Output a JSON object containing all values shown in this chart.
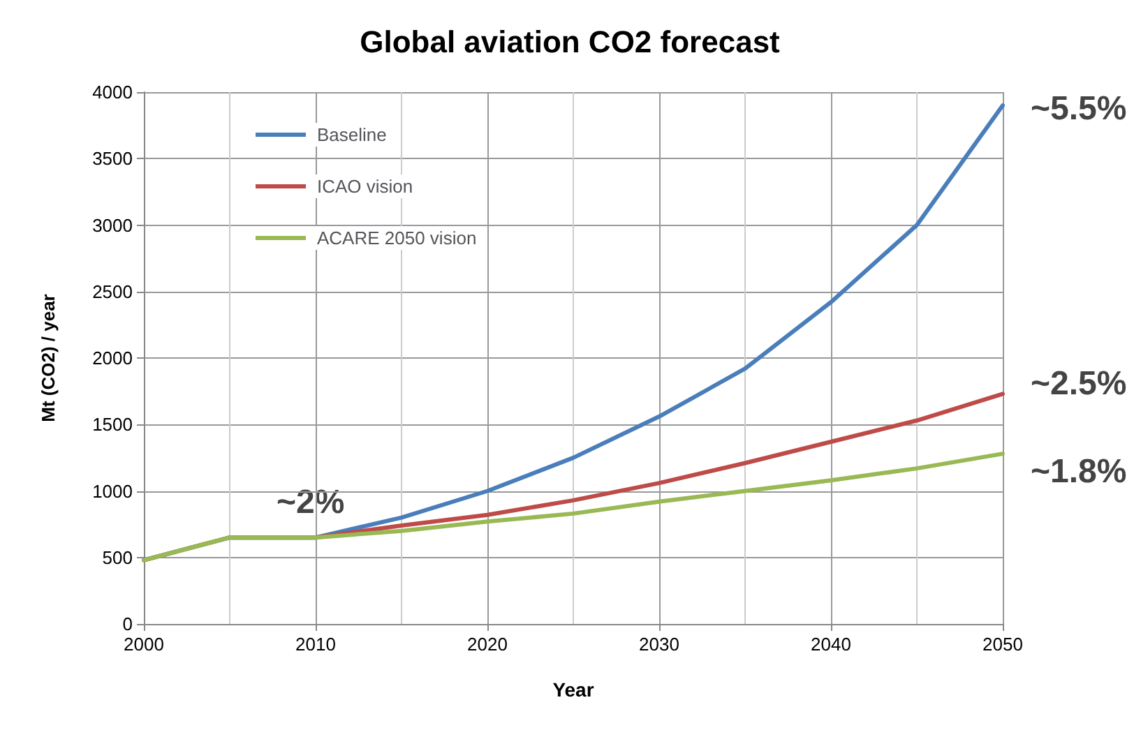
{
  "chart_data": {
    "type": "line",
    "title": "Global aviation CO2 forecast",
    "xlabel": "Year",
    "ylabel": "Mt (CO2) / year",
    "x": [
      2000,
      2005,
      2010,
      2015,
      2020,
      2025,
      2030,
      2035,
      2040,
      2045,
      2050
    ],
    "series": [
      {
        "name": "Baseline",
        "color": "#4a7ebb",
        "values": [
          480,
          650,
          650,
          800,
          1000,
          1250,
          1560,
          1920,
          2420,
          3000,
          3900
        ]
      },
      {
        "name": "ICAO vision",
        "color": "#be4b48",
        "values": [
          480,
          650,
          650,
          740,
          820,
          930,
          1060,
          1210,
          1370,
          1530,
          1730
        ]
      },
      {
        "name": "ACARE 2050 vision",
        "color": "#98b954",
        "values": [
          480,
          650,
          650,
          700,
          770,
          830,
          920,
          1000,
          1080,
          1170,
          1280
        ]
      }
    ],
    "annotations": [
      "~2%",
      "~5.5%",
      "~2.5%",
      "~1.8%"
    ],
    "xlim": [
      2000,
      2050
    ],
    "xticks": [
      2000,
      2010,
      2020,
      2030,
      2040,
      2050
    ],
    "ylim": [
      0,
      4000
    ],
    "yticks": [
      0,
      500,
      1000,
      1500,
      2000,
      2500,
      3000,
      3500,
      4000
    ],
    "grid": true,
    "legend": "top left",
    "marker": "none",
    "line_style": "solid"
  }
}
